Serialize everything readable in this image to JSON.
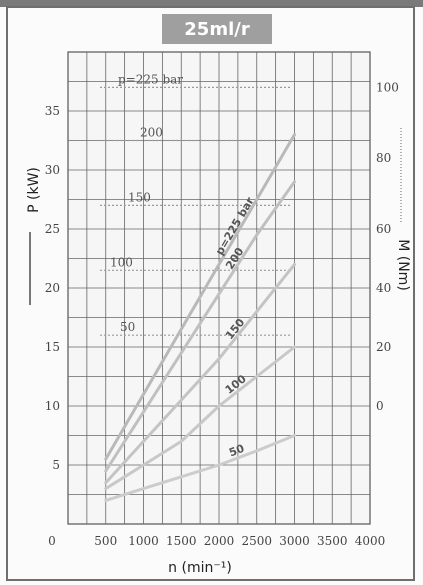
{
  "header": {
    "title": "25ml/r"
  },
  "chart_data": {
    "type": "line",
    "title": "25ml/r",
    "xlabel": "n (min⁻¹)",
    "ylabel_left": "P (kW)",
    "ylabel_right": "M (Nm)",
    "xlim": [
      0,
      4000
    ],
    "ylim_left": [
      0,
      40
    ],
    "x_ticks": [
      "0",
      "500",
      "1000",
      "1500",
      "2000",
      "2500",
      "3000",
      "3500",
      "4000"
    ],
    "y_ticks_left": [
      "5",
      "10",
      "15",
      "20",
      "25",
      "30",
      "35"
    ],
    "y_ticks_right": [
      {
        "label": "0",
        "at_power": 10
      },
      {
        "label": "20",
        "at_power": 15
      },
      {
        "label": "40",
        "at_power": 20
      },
      {
        "label": "60",
        "at_power": 25
      },
      {
        "label": "80",
        "at_power": 31
      },
      {
        "label": "100",
        "at_power": 37
      }
    ],
    "grid": true,
    "torque_lines": [
      {
        "label": "p=225 bar",
        "power": 37
      },
      {
        "label": "200",
        "power": 32.5
      },
      {
        "label": "150",
        "power": 27
      },
      {
        "label": "100",
        "power": 21.5
      },
      {
        "label": "50",
        "power": 16
      }
    ],
    "series": [
      {
        "name": "p=225 bar",
        "x": [
          500,
          1000,
          1500,
          2000,
          2500,
          3000
        ],
        "values": [
          5.5,
          11,
          16.5,
          22,
          27.5,
          33
        ]
      },
      {
        "name": "200",
        "x": [
          500,
          1000,
          1500,
          2000,
          2500,
          3000
        ],
        "values": [
          4.5,
          9.5,
          14.5,
          19.5,
          24.5,
          29
        ]
      },
      {
        "name": "150",
        "x": [
          500,
          1000,
          1500,
          2000,
          2500,
          3000
        ],
        "values": [
          3.5,
          7,
          10.5,
          14,
          18,
          22
        ]
      },
      {
        "name": "100",
        "x": [
          500,
          1000,
          1500,
          2000,
          2500,
          3000
        ],
        "values": [
          3,
          5,
          7,
          10,
          12.5,
          15
        ]
      },
      {
        "name": "50",
        "x": [
          500,
          1000,
          1500,
          2000,
          2500,
          3000
        ],
        "values": [
          2,
          3,
          4,
          5,
          6.2,
          7.5
        ]
      }
    ]
  }
}
